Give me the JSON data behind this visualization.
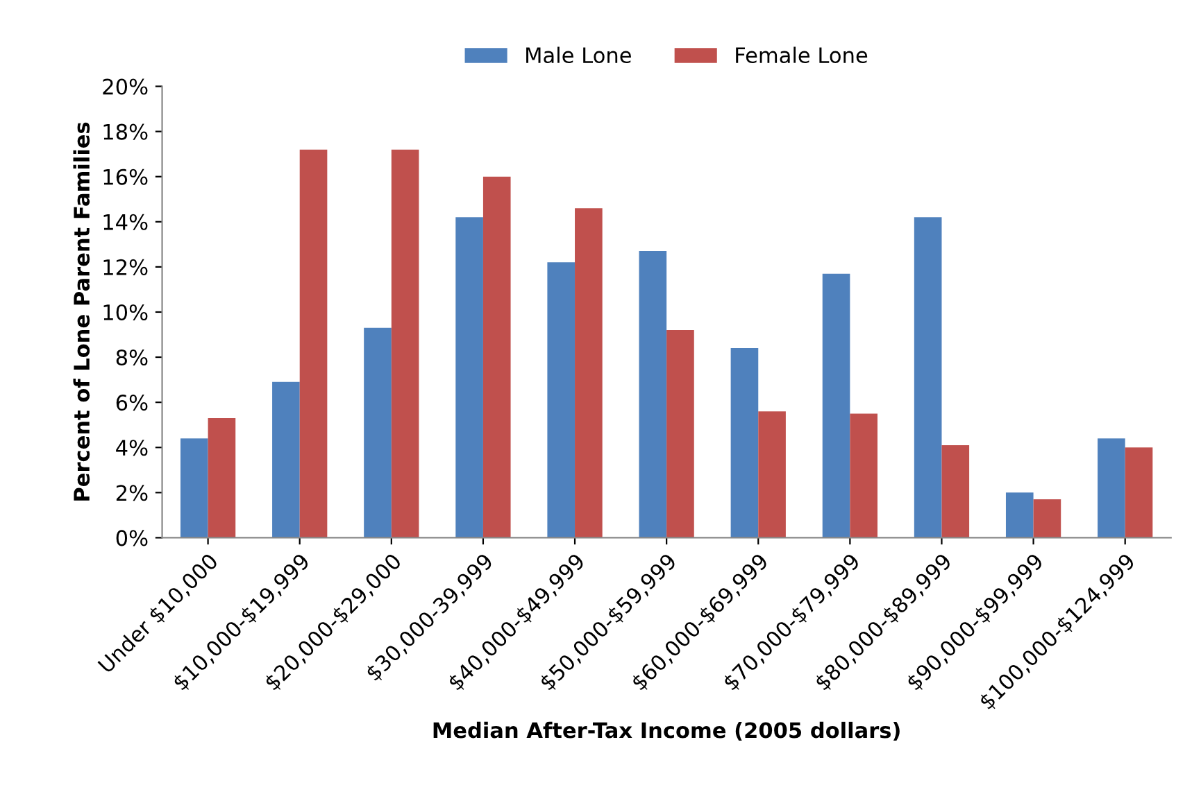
{
  "chart_data": {
    "type": "bar",
    "xlabel": "Median After-Tax Income (2005 dollars)",
    "ylabel": "Percent of Lone Parent Families",
    "categories": [
      "Under $10,000",
      "$10,000-$19,999",
      "$20,000-$29,000",
      "$30,000-39,999",
      "$40,000-$49,999",
      "$50,000-$59,999",
      "$60,000-$69,999",
      "$70,000-$79,999",
      "$80,000-$89,999",
      "$90,000-$99,999",
      "$100,000-$124,999"
    ],
    "series": [
      {
        "name": "Male Lone",
        "color": "#4f81bd",
        "values": [
          4.4,
          6.9,
          9.3,
          14.2,
          12.2,
          12.7,
          8.4,
          11.7,
          14.2,
          2.0,
          4.4
        ]
      },
      {
        "name": "Female Lone",
        "color": "#c0504d",
        "values": [
          5.3,
          17.2,
          17.2,
          16.0,
          14.6,
          9.2,
          5.6,
          5.5,
          4.1,
          1.7,
          4.0
        ]
      }
    ],
    "ylim": [
      0,
      20
    ],
    "yticks": [
      {
        "value": 0,
        "label": "0%"
      },
      {
        "value": 2,
        "label": "2%"
      },
      {
        "value": 4,
        "label": "4%"
      },
      {
        "value": 6,
        "label": "6%"
      },
      {
        "value": 8,
        "label": "8%"
      },
      {
        "value": 10,
        "label": "10%"
      },
      {
        "value": 12,
        "label": "12%"
      },
      {
        "value": 14,
        "label": "14%"
      },
      {
        "value": 16,
        "label": "16%"
      },
      {
        "value": 18,
        "label": "18%"
      },
      {
        "value": 20,
        "label": "20%"
      }
    ],
    "legend": "top",
    "grid": false
  }
}
